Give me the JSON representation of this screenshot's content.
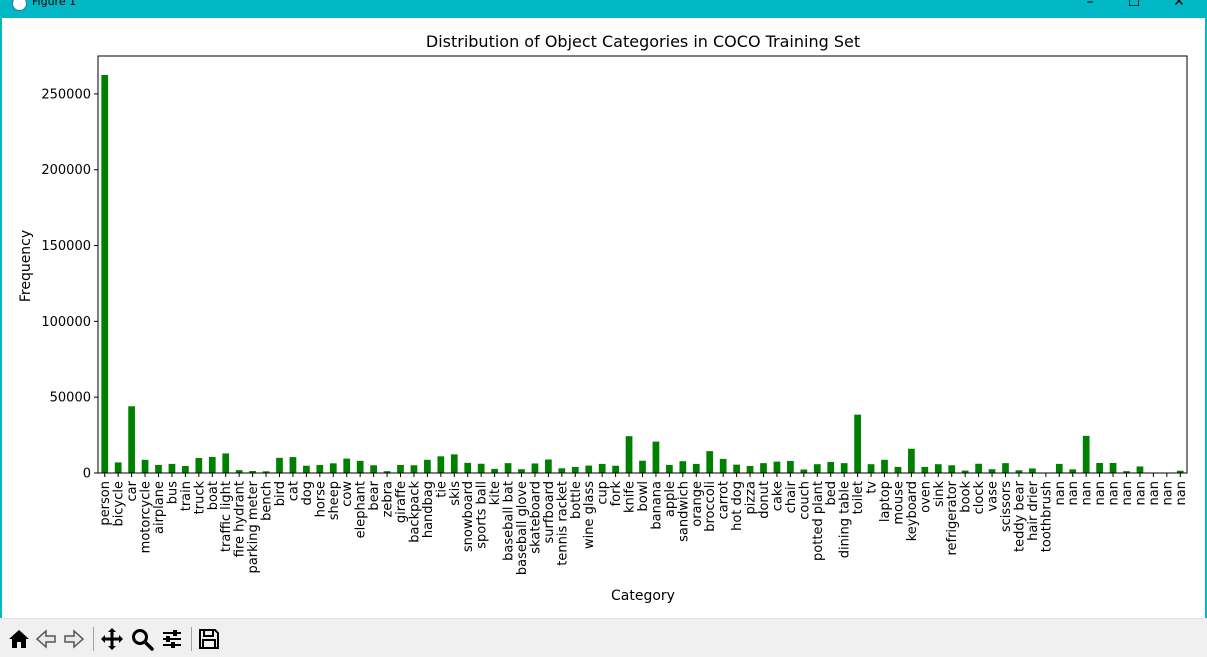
{
  "window": {
    "title": "Figure 1",
    "icon": "matplotlib-icon",
    "controls": [
      "minimize-icon",
      "maximize-icon",
      "close-icon"
    ]
  },
  "toolbar": {
    "buttons": [
      "home-icon",
      "back-icon",
      "forward-icon",
      "pan-icon",
      "zoom-icon",
      "configure-subplots-icon",
      "save-icon"
    ]
  },
  "chart_data": {
    "type": "bar",
    "title": "Distribution of Object Categories in COCO Training Set",
    "xlabel": "Category",
    "ylabel": "Frequency",
    "ylim": [
      0,
      275000
    ],
    "yticks": [
      0,
      50000,
      100000,
      150000,
      200000,
      250000
    ],
    "grid": false,
    "bar_color": "#008000",
    "categories": [
      "person",
      "bicycle",
      "car",
      "motorcycle",
      "airplane",
      "bus",
      "train",
      "truck",
      "boat",
      "traffic light",
      "fire hydrant",
      "parking meter",
      "bench",
      "bird",
      "cat",
      "dog",
      "horse",
      "sheep",
      "cow",
      "elephant",
      "bear",
      "zebra",
      "giraffe",
      "backpack",
      "handbag",
      "tie",
      "skis",
      "snowboard",
      "sports ball",
      "kite",
      "baseball bat",
      "baseball glove",
      "skateboard",
      "surfboard",
      "tennis racket",
      "bottle",
      "wine glass",
      "cup",
      "fork",
      "knife",
      "bowl",
      "banana",
      "apple",
      "sandwich",
      "orange",
      "broccoli",
      "carrot",
      "hot dog",
      "pizza",
      "donut",
      "cake",
      "chair",
      "couch",
      "potted plant",
      "bed",
      "dining table",
      "toilet",
      "tv",
      "laptop",
      "mouse",
      "keyboard",
      "oven",
      "sink",
      "refrigerator",
      "book",
      "clock",
      "vase",
      "scissors",
      "teddy bear",
      "hair drier",
      "toothbrush",
      "nan",
      "nan",
      "nan",
      "nan",
      "nan",
      "nan",
      "nan",
      "nan",
      "nan",
      "nan"
    ],
    "values": [
      262500,
      7000,
      44000,
      8700,
      5300,
      6000,
      4600,
      9900,
      10600,
      12900,
      1900,
      1300,
      1100,
      10000,
      10500,
      4800,
      5300,
      6400,
      9500,
      8000,
      5100,
      1200,
      5300,
      5100,
      8700,
      11000,
      12300,
      6700,
      6100,
      2700,
      6500,
      2500,
      6300,
      8900,
      3100,
      4000,
      4900,
      6000,
      4800,
      24300,
      8100,
      20700,
      5300,
      7800,
      6000,
      14400,
      9300,
      5500,
      4600,
      6500,
      7500,
      7900,
      2300,
      5800,
      7300,
      6500,
      38500,
      5800,
      8700,
      4000,
      16000,
      4000,
      5800,
      5100,
      1600,
      6100,
      2500,
      6500,
      1800,
      3000,
      200,
      6000,
      2400,
      24500,
      6600,
      6600,
      1200,
      4300,
      200,
      100,
      1500
    ]
  }
}
